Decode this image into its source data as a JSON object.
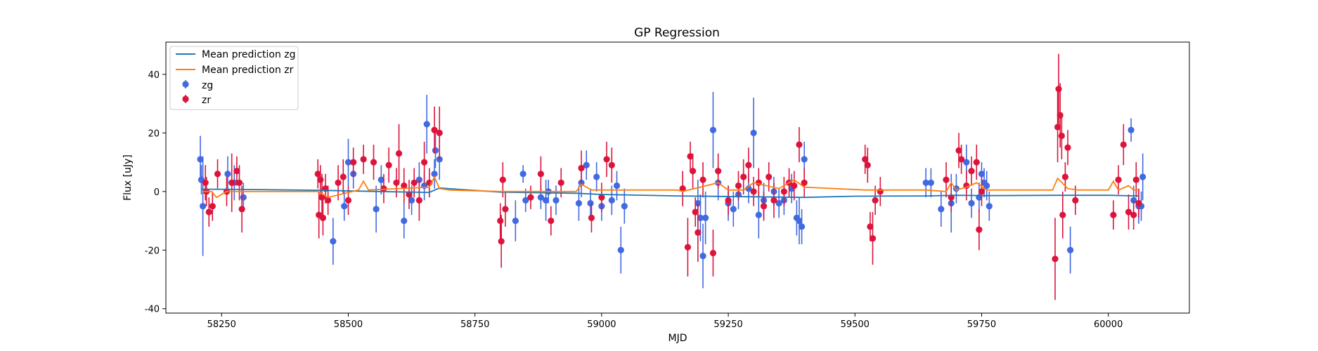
{
  "chart_data": {
    "type": "scatter",
    "title": "GP Regression",
    "xlabel": "MJD",
    "ylabel": "Flux [uJy]",
    "xlim": [
      58140,
      60160
    ],
    "ylim": [
      -41.5,
      51
    ],
    "xticks": [
      58250,
      58500,
      58750,
      59000,
      59250,
      59500,
      59750,
      60000
    ],
    "yticks": [
      -40,
      -20,
      0,
      20,
      40
    ],
    "grid": false,
    "legend_position": "top-left",
    "legend": [
      "Mean prediction zg",
      "Mean prediction zr",
      "zg",
      "zr"
    ],
    "colors": {
      "mean_zg": "#1f77b4",
      "mean_zr": "#ff7f0e",
      "zg": "#4169e1",
      "zr": "#dc143c"
    },
    "series": [
      {
        "name": "Mean prediction zg",
        "type": "line",
        "x": [
          58210,
          58300,
          58450,
          58560,
          58660,
          58680,
          58800,
          58950,
          59000,
          59150,
          59300,
          59400,
          59500,
          59640,
          59700,
          59760,
          59900,
          60000,
          60060
        ],
        "y": [
          0.8,
          0.7,
          0.4,
          0.0,
          -0.3,
          1.2,
          -0.2,
          -0.6,
          -1.0,
          -1.5,
          -1.8,
          -2.0,
          -1.6,
          -1.5,
          -1.3,
          -1.4,
          -1.3,
          -1.3,
          -1.5
        ]
      },
      {
        "name": "Mean prediction zr",
        "type": "line",
        "x": [
          58210,
          58230,
          58240,
          58260,
          58300,
          58440,
          58460,
          58520,
          58530,
          58540,
          58600,
          58660,
          58670,
          58680,
          58700,
          58800,
          58950,
          58960,
          58980,
          59000,
          59030,
          59150,
          59160,
          59230,
          59250,
          59280,
          59300,
          59350,
          59380,
          59400,
          59520,
          59550,
          59640,
          59680,
          59690,
          59700,
          59720,
          59740,
          59760,
          59890,
          59900,
          59920,
          59940,
          60000,
          60010,
          60020,
          60040,
          60050,
          60060
        ],
        "y": [
          0.0,
          0.0,
          -2.0,
          0.0,
          0.0,
          0.0,
          -2.0,
          0.5,
          3.5,
          0.5,
          1.0,
          1.5,
          5.0,
          1.0,
          0.5,
          0.0,
          0.0,
          2.5,
          0.5,
          0.5,
          0.5,
          0.5,
          0.0,
          3.0,
          0.5,
          0.5,
          3.0,
          1.0,
          4.0,
          1.5,
          0.5,
          0.5,
          0.5,
          0.0,
          3.0,
          0.5,
          1.5,
          3.0,
          0.5,
          0.5,
          4.5,
          1.0,
          0.5,
          0.5,
          3.5,
          0.5,
          2.0,
          0.5,
          0.5
        ]
      },
      {
        "name": "zg",
        "type": "errorbar",
        "points": [
          [
            58208,
            11,
            8
          ],
          [
            58210,
            4,
            5
          ],
          [
            58213,
            -5,
            17
          ],
          [
            58262,
            6,
            6
          ],
          [
            58275,
            3,
            6
          ],
          [
            58293,
            -2,
            5
          ],
          [
            58470,
            -17,
            8
          ],
          [
            58492,
            -5,
            5
          ],
          [
            58500,
            10,
            8
          ],
          [
            58510,
            6,
            5
          ],
          [
            58555,
            -6,
            8
          ],
          [
            58565,
            4,
            5
          ],
          [
            58610,
            -10,
            6
          ],
          [
            58625,
            -3,
            5
          ],
          [
            58640,
            4,
            6
          ],
          [
            58650,
            2,
            5
          ],
          [
            58655,
            23,
            10
          ],
          [
            58670,
            6,
            5
          ],
          [
            58672,
            14,
            6
          ],
          [
            58680,
            11,
            7
          ],
          [
            58830,
            -10,
            7
          ],
          [
            58845,
            6,
            3
          ],
          [
            58850,
            -3,
            4
          ],
          [
            58880,
            -2,
            4
          ],
          [
            58890,
            -3,
            7
          ],
          [
            58895,
            0,
            4
          ],
          [
            58910,
            -3,
            5
          ],
          [
            58955,
            -4,
            6
          ],
          [
            58960,
            3,
            5
          ],
          [
            58970,
            9,
            5
          ],
          [
            58978,
            -4,
            5
          ],
          [
            58990,
            5,
            5
          ],
          [
            59000,
            -5,
            5
          ],
          [
            59020,
            -3,
            5
          ],
          [
            59030,
            2,
            5
          ],
          [
            59038,
            -20,
            8
          ],
          [
            59045,
            -5,
            6
          ],
          [
            59190,
            -4,
            8
          ],
          [
            59195,
            -9,
            8
          ],
          [
            59200,
            -22,
            11
          ],
          [
            59205,
            -9,
            9
          ],
          [
            59220,
            21,
            13
          ],
          [
            59230,
            3,
            6
          ],
          [
            59250,
            -4,
            6
          ],
          [
            59260,
            -6,
            6
          ],
          [
            59270,
            -1,
            5
          ],
          [
            59290,
            1,
            5
          ],
          [
            59300,
            20,
            12
          ],
          [
            59310,
            -8,
            8
          ],
          [
            59320,
            -3,
            6
          ],
          [
            59340,
            0,
            5
          ],
          [
            59350,
            -4,
            5
          ],
          [
            59360,
            -3,
            5
          ],
          [
            59375,
            1,
            5
          ],
          [
            59385,
            -9,
            6
          ],
          [
            59390,
            -10,
            8
          ],
          [
            59395,
            -12,
            6
          ],
          [
            59400,
            11,
            6
          ],
          [
            59640,
            3,
            5
          ],
          [
            59650,
            3,
            5
          ],
          [
            59670,
            -6,
            6
          ],
          [
            59690,
            -4,
            10
          ],
          [
            59700,
            1,
            5
          ],
          [
            59720,
            10,
            6
          ],
          [
            59730,
            -4,
            5
          ],
          [
            59745,
            -2,
            5
          ],
          [
            59750,
            6,
            4
          ],
          [
            59755,
            3,
            5
          ],
          [
            59760,
            2,
            5
          ],
          [
            59765,
            -5,
            5
          ],
          [
            59925,
            -20,
            8
          ],
          [
            60045,
            21,
            4
          ],
          [
            60050,
            -3,
            5
          ],
          [
            60060,
            -5,
            6
          ],
          [
            60065,
            -5,
            5
          ],
          [
            60068,
            5,
            8
          ]
        ]
      },
      {
        "name": "zr",
        "type": "errorbar",
        "points": [
          [
            58218,
            3,
            6
          ],
          [
            58220,
            0,
            5
          ],
          [
            58225,
            -7,
            5
          ],
          [
            58232,
            -5,
            5
          ],
          [
            58242,
            6,
            5
          ],
          [
            58260,
            0,
            5
          ],
          [
            58270,
            3,
            10
          ],
          [
            58280,
            7,
            5
          ],
          [
            58285,
            3,
            6
          ],
          [
            58290,
            -6,
            8
          ],
          [
            58440,
            6,
            5
          ],
          [
            58442,
            -8,
            8
          ],
          [
            58445,
            4,
            5
          ],
          [
            58448,
            -2,
            8
          ],
          [
            58450,
            -9,
            6
          ],
          [
            58455,
            1,
            5
          ],
          [
            58460,
            -3,
            5
          ],
          [
            58480,
            3,
            6
          ],
          [
            58490,
            5,
            6
          ],
          [
            58500,
            -3,
            5
          ],
          [
            58510,
            10,
            5
          ],
          [
            58530,
            11,
            5
          ],
          [
            58550,
            10,
            6
          ],
          [
            58570,
            1,
            5
          ],
          [
            58580,
            9,
            6
          ],
          [
            58595,
            3,
            5
          ],
          [
            58600,
            13,
            10
          ],
          [
            58610,
            2,
            6
          ],
          [
            58620,
            -1,
            5
          ],
          [
            58630,
            3,
            5
          ],
          [
            58640,
            -3,
            7
          ],
          [
            58650,
            10,
            7
          ],
          [
            58660,
            3,
            5
          ],
          [
            58670,
            21,
            8
          ],
          [
            58680,
            20,
            9
          ],
          [
            58800,
            -10,
            6
          ],
          [
            58802,
            -17,
            9
          ],
          [
            58805,
            4,
            6
          ],
          [
            58810,
            -6,
            6
          ],
          [
            58860,
            -2,
            4
          ],
          [
            58880,
            6,
            6
          ],
          [
            58900,
            -10,
            5
          ],
          [
            58920,
            3,
            5
          ],
          [
            58960,
            8,
            6
          ],
          [
            58980,
            -9,
            5
          ],
          [
            59000,
            -2,
            5
          ],
          [
            59010,
            11,
            6
          ],
          [
            59020,
            9,
            6
          ],
          [
            59160,
            1,
            6
          ],
          [
            59170,
            -19,
            10
          ],
          [
            59175,
            12,
            5
          ],
          [
            59180,
            7,
            6
          ],
          [
            59185,
            -7,
            5
          ],
          [
            59190,
            -14,
            10
          ],
          [
            59200,
            4,
            6
          ],
          [
            59220,
            -21,
            8
          ],
          [
            59230,
            7,
            6
          ],
          [
            59250,
            -3,
            5
          ],
          [
            59270,
            2,
            5
          ],
          [
            59280,
            5,
            6
          ],
          [
            59290,
            9,
            6
          ],
          [
            59300,
            0,
            5
          ],
          [
            59310,
            3,
            5
          ],
          [
            59320,
            -5,
            5
          ],
          [
            59330,
            5,
            5
          ],
          [
            59340,
            -3,
            6
          ],
          [
            59360,
            0,
            5
          ],
          [
            59370,
            3,
            5
          ],
          [
            59380,
            2,
            5
          ],
          [
            59390,
            16,
            6
          ],
          [
            59400,
            3,
            5
          ],
          [
            59520,
            11,
            5
          ],
          [
            59525,
            9,
            6
          ],
          [
            59530,
            -12,
            5
          ],
          [
            59535,
            -16,
            9
          ],
          [
            59540,
            -3,
            5
          ],
          [
            59550,
            0,
            5
          ],
          [
            59680,
            4,
            6
          ],
          [
            59690,
            -2,
            5
          ],
          [
            59705,
            14,
            6
          ],
          [
            59710,
            11,
            5
          ],
          [
            59720,
            2,
            5
          ],
          [
            59730,
            7,
            5
          ],
          [
            59740,
            10,
            6
          ],
          [
            59745,
            -13,
            7
          ],
          [
            59750,
            0,
            5
          ],
          [
            59895,
            -23,
            14
          ],
          [
            59900,
            22,
            12
          ],
          [
            59902,
            35,
            12
          ],
          [
            59905,
            26,
            11
          ],
          [
            59908,
            19,
            8
          ],
          [
            59910,
            -8,
            8
          ],
          [
            59915,
            5,
            5
          ],
          [
            59920,
            15,
            6
          ],
          [
            59935,
            -3,
            5
          ],
          [
            60010,
            -8,
            5
          ],
          [
            60020,
            4,
            5
          ],
          [
            60030,
            16,
            7
          ],
          [
            60040,
            -7,
            6
          ],
          [
            60050,
            -8,
            5
          ],
          [
            60055,
            4,
            6
          ],
          [
            60060,
            -4,
            5
          ]
        ]
      }
    ]
  }
}
